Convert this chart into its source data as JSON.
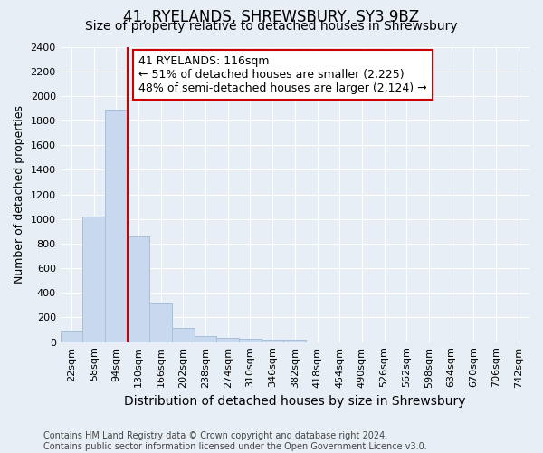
{
  "title": "41, RYELANDS, SHREWSBURY, SY3 9BZ",
  "subtitle": "Size of property relative to detached houses in Shrewsbury",
  "xlabel": "Distribution of detached houses by size in Shrewsbury",
  "ylabel": "Number of detached properties",
  "footer_line1": "Contains HM Land Registry data © Crown copyright and database right 2024.",
  "footer_line2": "Contains public sector information licensed under the Open Government Licence v3.0.",
  "categories": [
    "22sqm",
    "58sqm",
    "94sqm",
    "130sqm",
    "166sqm",
    "202sqm",
    "238sqm",
    "274sqm",
    "310sqm",
    "346sqm",
    "382sqm",
    "418sqm",
    "454sqm",
    "490sqm",
    "526sqm",
    "562sqm",
    "598sqm",
    "634sqm",
    "670sqm",
    "706sqm",
    "742sqm"
  ],
  "values": [
    90,
    1020,
    1890,
    860,
    320,
    115,
    50,
    38,
    28,
    22,
    22,
    0,
    0,
    0,
    0,
    0,
    0,
    0,
    0,
    0,
    0
  ],
  "bar_color": "#c8d8ee",
  "bar_edge_color": "#a8c0d8",
  "vline_color": "#cc0000",
  "vline_x": 2.5,
  "annotation_text": "41 RYELANDS: 116sqm\n← 51% of detached houses are smaller (2,225)\n48% of semi-detached houses are larger (2,124) →",
  "annotation_box_facecolor": "#ffffff",
  "annotation_box_edgecolor": "#cc0000",
  "ylim": [
    0,
    2400
  ],
  "yticks": [
    0,
    200,
    400,
    600,
    800,
    1000,
    1200,
    1400,
    1600,
    1800,
    2000,
    2200,
    2400
  ],
  "background_color": "#e8eef5",
  "plot_background": "#e8eef5",
  "grid_color": "#ffffff",
  "title_fontsize": 12,
  "subtitle_fontsize": 10,
  "ylabel_fontsize": 9,
  "xlabel_fontsize": 10,
  "footer_fontsize": 7,
  "annot_fontsize": 9,
  "tick_fontsize": 8
}
